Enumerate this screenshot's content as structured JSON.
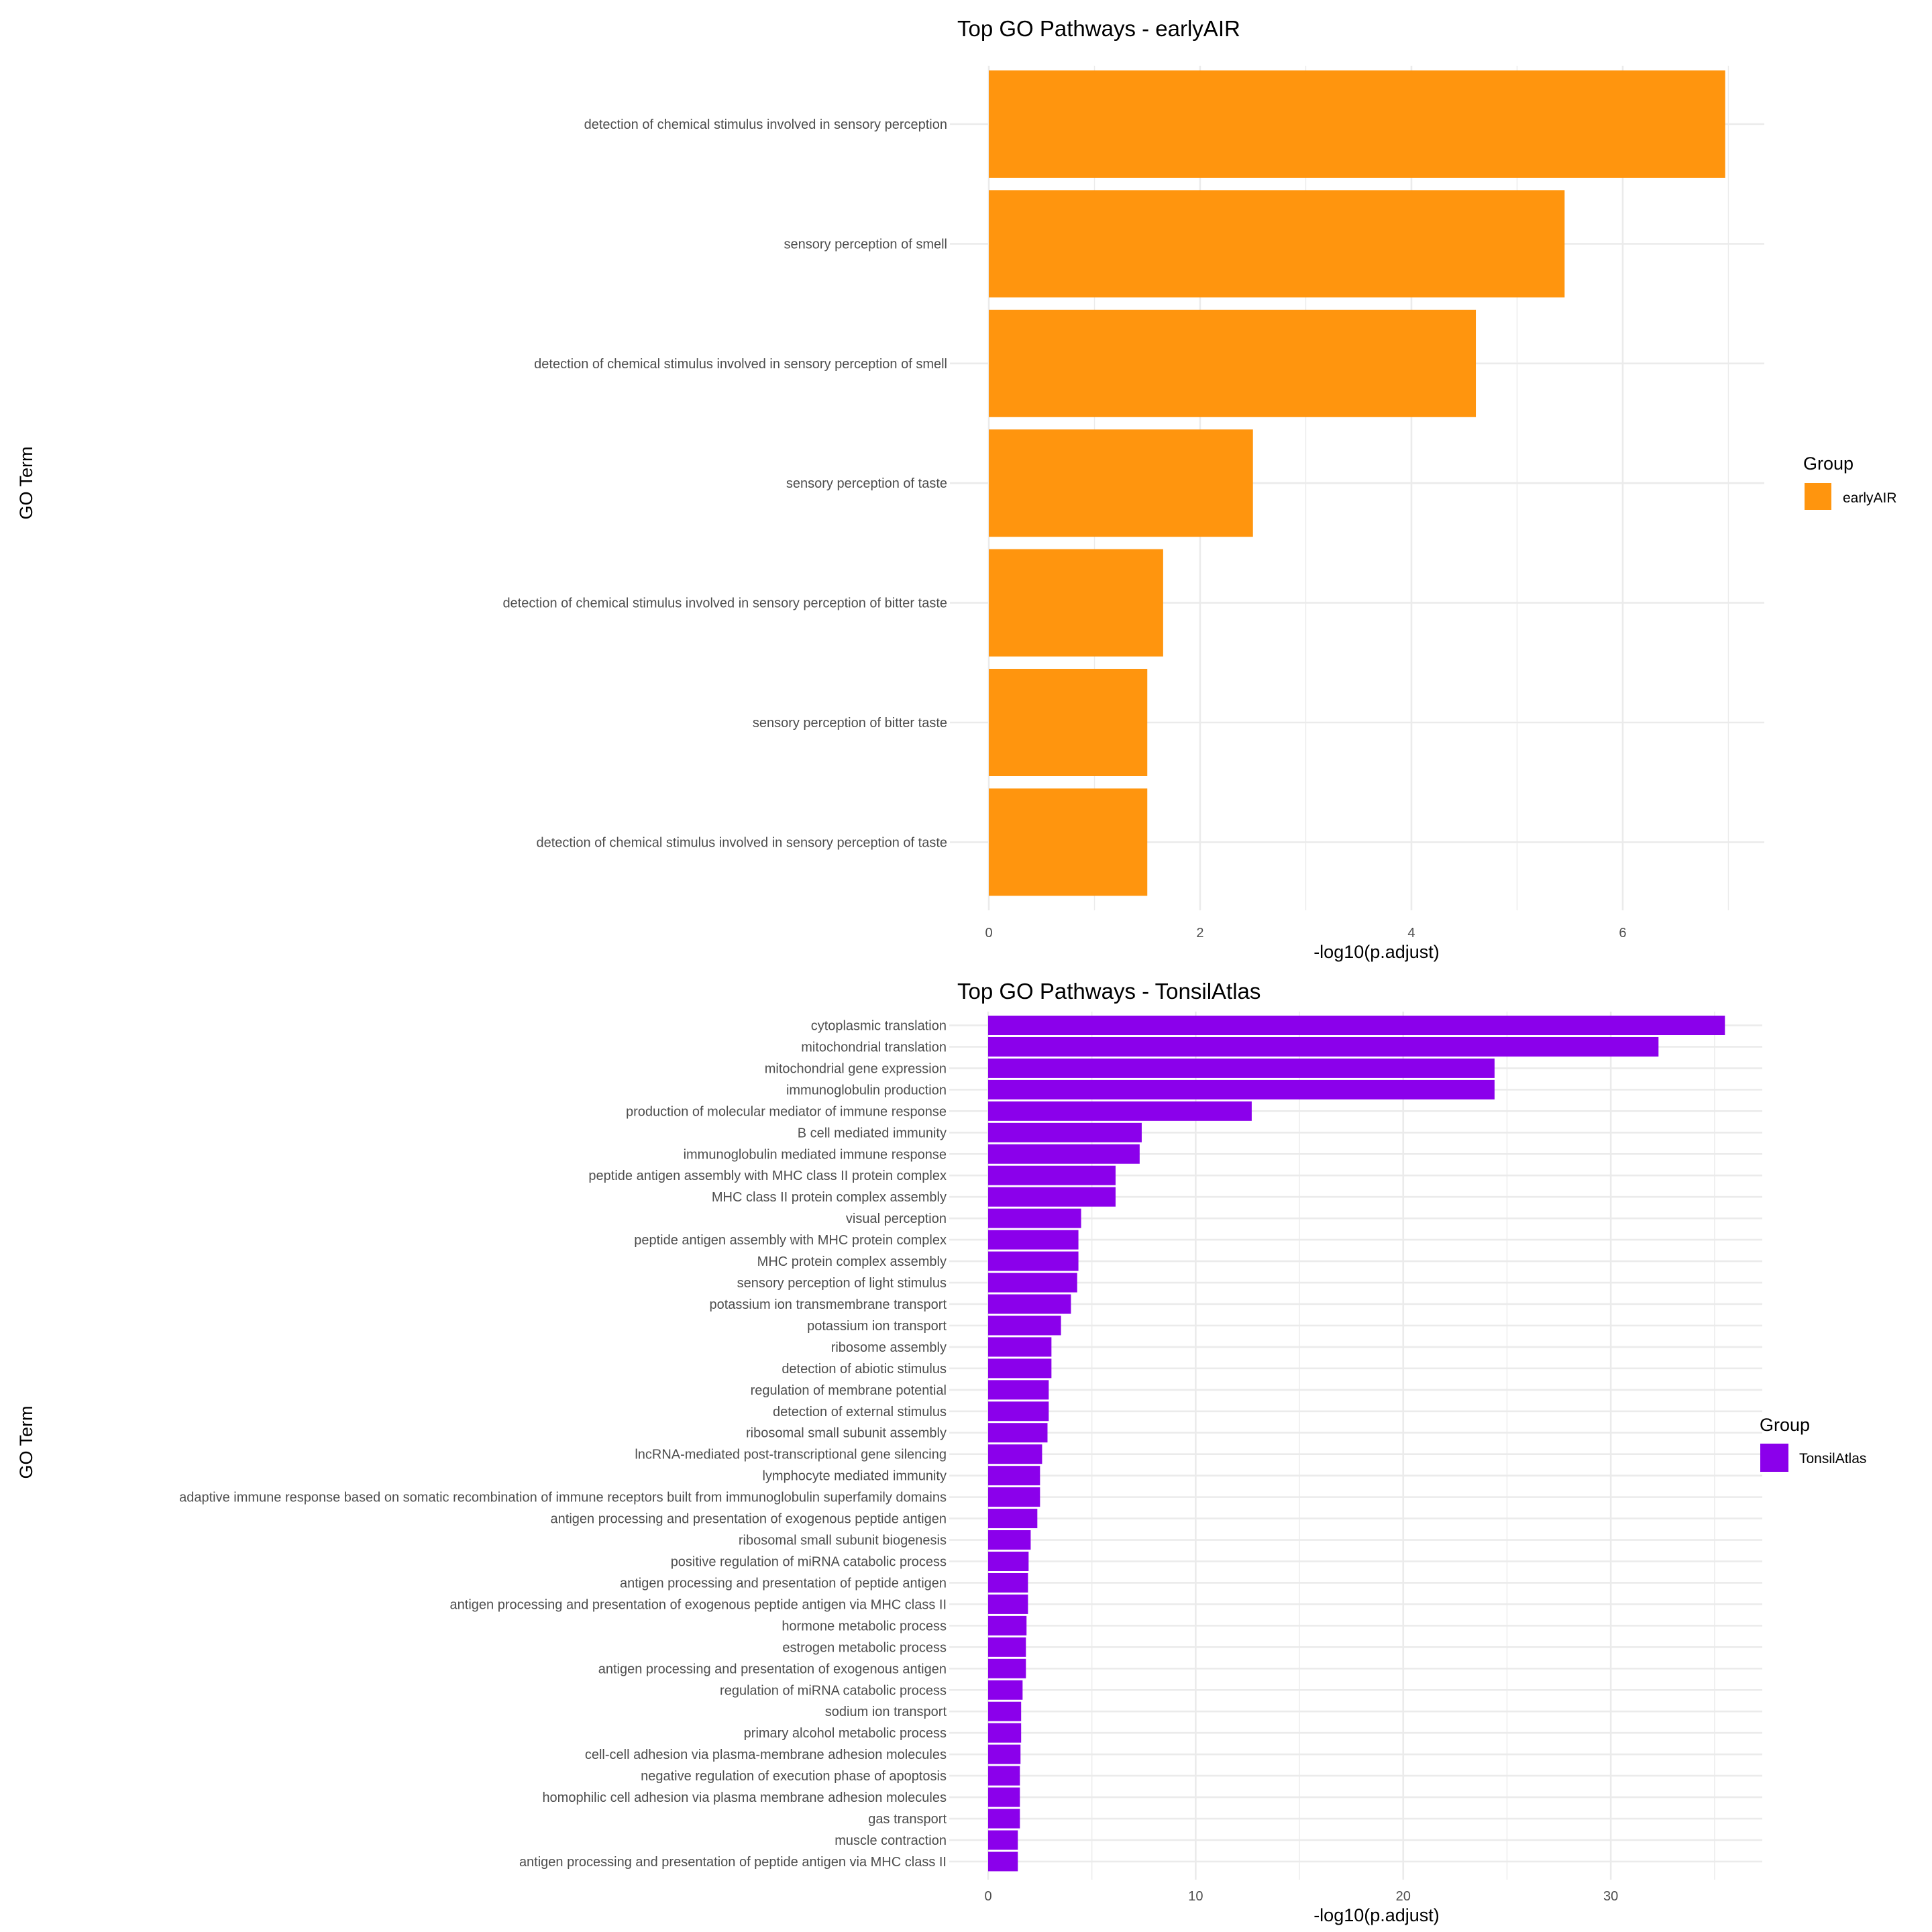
{
  "chart_data": [
    {
      "type": "bar",
      "orientation": "horizontal",
      "title": "Top GO Pathways - earlyAIR",
      "xlabel": "-log10(p.adjust)",
      "ylabel": "GO Term",
      "xlim": [
        0,
        7.34
      ],
      "xticks": [
        0,
        2,
        4,
        6
      ],
      "grid": true,
      "legend": {
        "title": "Group",
        "position": "right",
        "entries": [
          {
            "label": "earlyAIR",
            "color": "#FF950E"
          }
        ]
      },
      "color": "#FF950E",
      "categories": [
        "detection of chemical stimulus involved in sensory perception",
        "sensory perception of smell",
        "detection of chemical stimulus involved in sensory perception of smell",
        "sensory perception of taste",
        "detection of chemical stimulus involved in sensory perception of bitter taste",
        "sensory perception of bitter taste",
        "detection of chemical stimulus involved in sensory perception of taste"
      ],
      "values": [
        6.97,
        5.45,
        4.61,
        2.5,
        1.65,
        1.5,
        1.5
      ]
    },
    {
      "type": "bar",
      "orientation": "horizontal",
      "title": "Top GO Pathways - TonsilAtlas",
      "xlabel": "-log10(p.adjust)",
      "ylabel": "GO Term",
      "xlim": [
        0,
        37.3
      ],
      "xticks": [
        0,
        10,
        20,
        30
      ],
      "grid": true,
      "legend": {
        "title": "Group",
        "position": "right",
        "entries": [
          {
            "label": "TonsilAtlas",
            "color": "#8B00EB"
          }
        ]
      },
      "color": "#8B00EB",
      "categories": [
        "cytoplasmic translation",
        "mitochondrial translation",
        "mitochondrial gene expression",
        "immunoglobulin production",
        "production of molecular mediator of immune response",
        "B cell mediated immunity",
        "immunoglobulin mediated immune response",
        "peptide antigen assembly with MHC class II protein complex",
        "MHC class II protein complex assembly",
        "visual perception",
        "peptide antigen assembly with MHC protein complex",
        "MHC protein complex assembly",
        "sensory perception of light stimulus",
        "potassium ion transmembrane transport",
        "potassium ion transport",
        "ribosome assembly",
        "detection of abiotic stimulus",
        "regulation of membrane potential",
        "detection of external stimulus",
        "ribosomal small subunit assembly",
        "lncRNA-mediated post-transcriptional gene silencing",
        "lymphocyte mediated immunity",
        "adaptive immune response based on somatic recombination of immune receptors built from immunoglobulin superfamily domains",
        "antigen processing and presentation of exogenous peptide antigen",
        "ribosomal small subunit biogenesis",
        "positive regulation of miRNA catabolic process",
        "antigen processing and presentation of peptide antigen",
        "antigen processing and presentation of exogenous peptide antigen via MHC class II",
        "hormone metabolic process",
        "estrogen metabolic process",
        "antigen processing and presentation of exogenous antigen",
        "regulation of miRNA catabolic process",
        "sodium ion transport",
        "primary alcohol metabolic process",
        "cell-cell adhesion via plasma-membrane adhesion molecules",
        "negative regulation of execution phase of apoptosis",
        "homophilic cell adhesion via plasma membrane adhesion molecules",
        "gas transport",
        "muscle contraction",
        "antigen processing and presentation of peptide antigen via MHC class II"
      ],
      "values": [
        35.5,
        32.3,
        24.4,
        24.4,
        12.7,
        7.4,
        7.3,
        6.14,
        6.14,
        4.48,
        4.35,
        4.35,
        4.29,
        3.99,
        3.51,
        3.05,
        3.05,
        2.92,
        2.92,
        2.86,
        2.6,
        2.5,
        2.5,
        2.37,
        2.05,
        1.95,
        1.92,
        1.92,
        1.85,
        1.82,
        1.82,
        1.66,
        1.59,
        1.59,
        1.56,
        1.53,
        1.53,
        1.53,
        1.43,
        1.43
      ]
    }
  ]
}
